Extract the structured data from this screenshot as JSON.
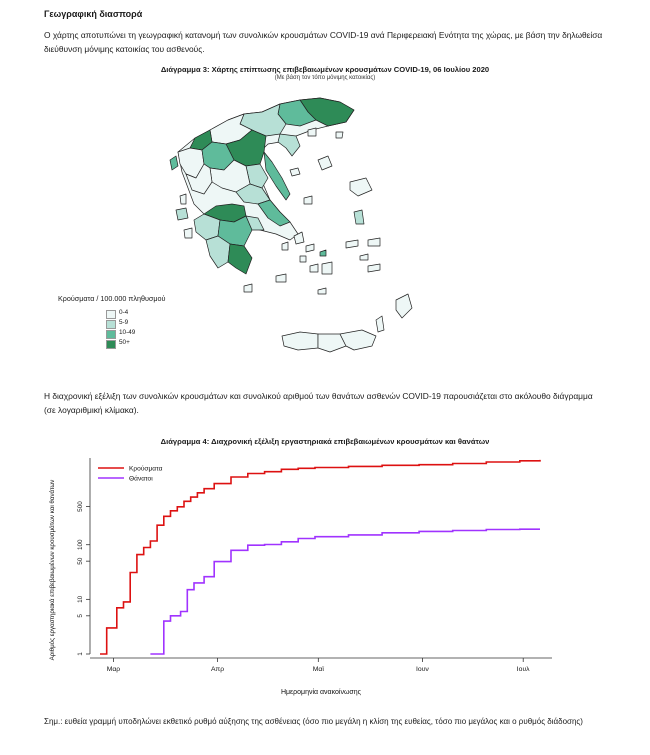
{
  "section_title": "Γεωγραφική διασπορά",
  "paragraph_map": "Ο χάρτης αποτυπώνει τη γεωγραφική κατανομή των συνολικών κρουσμάτων COVID-19 ανά Περιφερειακή Ενότητα της χώρας, με βάση την δηλωθείσα διεύθυνση μόνιμης κατοικίας του ασθενούς.",
  "figure3": {
    "title": "Διάγραμμα 3: Χάρτης επίπτωσης επιβεβαιωμένων κρουσμάτων COVID-19, 06 Ιουλίου 2020",
    "subtitle": "(Με βάση τον τόπο μόνιμης κατοικίας)",
    "legend_title": "Κρούσματα / 100.000 πληθυσμού",
    "legend": [
      {
        "label": "0-4",
        "color": "#eef7f6"
      },
      {
        "label": "5-9",
        "color": "#b7e0d6"
      },
      {
        "label": "10-49",
        "color": "#5fbb9b"
      },
      {
        "label": "50+",
        "color": "#2e8b57"
      }
    ]
  },
  "paragraph_chart": "Η διαχρονική εξέλιξη των συνολικών κρουσμάτων και συνολικού αριθμού των θανάτων ασθενών COVID-19 παρουσιάζεται στο ακόλουθο διάγραμμα (σε λογαριθμική κλίμακα).",
  "figure4": {
    "title": "Διάγραμμα 4: Διαχρονική εξέλιξη εργαστηριακά επιβεβαιωμένων κρουσμάτων και θανάτων"
  },
  "chart_data": {
    "type": "line",
    "title": "Διάγραμμα 4: Διαχρονική εξέλιξη εργαστηριακά επιβεβαιωμένων κρουσμάτων και θανάτων",
    "xlabel": "Ημερομηνία ανακοίνωσης",
    "ylabel": "Αριθμός εργαστηριακά επιβεβαιωμένων κρουσμάτων και θανάτων",
    "y_scale": "log",
    "ylim": [
      1,
      3000
    ],
    "y_ticks": [
      1,
      5,
      10,
      50,
      100,
      500
    ],
    "x_ticks": [
      "Μαρ",
      "Απρ",
      "Μαϊ",
      "Ιουν",
      "Ιουλ"
    ],
    "x_range": [
      "2020-02-26",
      "2020-07-06"
    ],
    "legend_position": "top-left",
    "series": [
      {
        "name": "Κρούσματα",
        "color": "#dd1111",
        "points": [
          [
            "2020-02-26",
            1
          ],
          [
            "2020-02-28",
            3
          ],
          [
            "2020-03-02",
            7
          ],
          [
            "2020-03-04",
            9
          ],
          [
            "2020-03-06",
            31
          ],
          [
            "2020-03-08",
            66
          ],
          [
            "2020-03-10",
            89
          ],
          [
            "2020-03-12",
            117
          ],
          [
            "2020-03-14",
            228
          ],
          [
            "2020-03-16",
            331
          ],
          [
            "2020-03-18",
            418
          ],
          [
            "2020-03-20",
            495
          ],
          [
            "2020-03-22",
            624
          ],
          [
            "2020-03-24",
            743
          ],
          [
            "2020-03-26",
            892
          ],
          [
            "2020-03-28",
            1061
          ],
          [
            "2020-03-31",
            1314
          ],
          [
            "2020-04-05",
            1735
          ],
          [
            "2020-04-10",
            2011
          ],
          [
            "2020-04-15",
            2170
          ],
          [
            "2020-04-20",
            2401
          ],
          [
            "2020-04-25",
            2506
          ],
          [
            "2020-04-30",
            2591
          ],
          [
            "2020-05-10",
            2710
          ],
          [
            "2020-05-20",
            2840
          ],
          [
            "2020-05-31",
            2917
          ],
          [
            "2020-06-10",
            3068
          ],
          [
            "2020-06-20",
            3266
          ],
          [
            "2020-06-30",
            3432
          ],
          [
            "2020-07-06",
            3562
          ]
        ]
      },
      {
        "name": "Θάνατοι",
        "color": "#a033ff",
        "points": [
          [
            "2020-03-12",
            1
          ],
          [
            "2020-03-14",
            1
          ],
          [
            "2020-03-16",
            4
          ],
          [
            "2020-03-18",
            5
          ],
          [
            "2020-03-21",
            6
          ],
          [
            "2020-03-23",
            15
          ],
          [
            "2020-03-25",
            20
          ],
          [
            "2020-03-28",
            26
          ],
          [
            "2020-03-31",
            49
          ],
          [
            "2020-04-05",
            79
          ],
          [
            "2020-04-10",
            98
          ],
          [
            "2020-04-15",
            101
          ],
          [
            "2020-04-20",
            113
          ],
          [
            "2020-04-25",
            130
          ],
          [
            "2020-04-30",
            140
          ],
          [
            "2020-05-10",
            151
          ],
          [
            "2020-05-20",
            165
          ],
          [
            "2020-05-31",
            175
          ],
          [
            "2020-06-10",
            182
          ],
          [
            "2020-06-20",
            190
          ],
          [
            "2020-06-30",
            192
          ],
          [
            "2020-07-06",
            192
          ]
        ]
      }
    ]
  },
  "note": "Σημ.: ευθεία γραμμή υποδηλώνει εκθετικό ρυθμό αύξησης της ασθένειας (όσο πιο μεγάλη η κλίση της ευθείας, τόσο πιο μεγάλος και ο ρυθμός διάδοσης)"
}
